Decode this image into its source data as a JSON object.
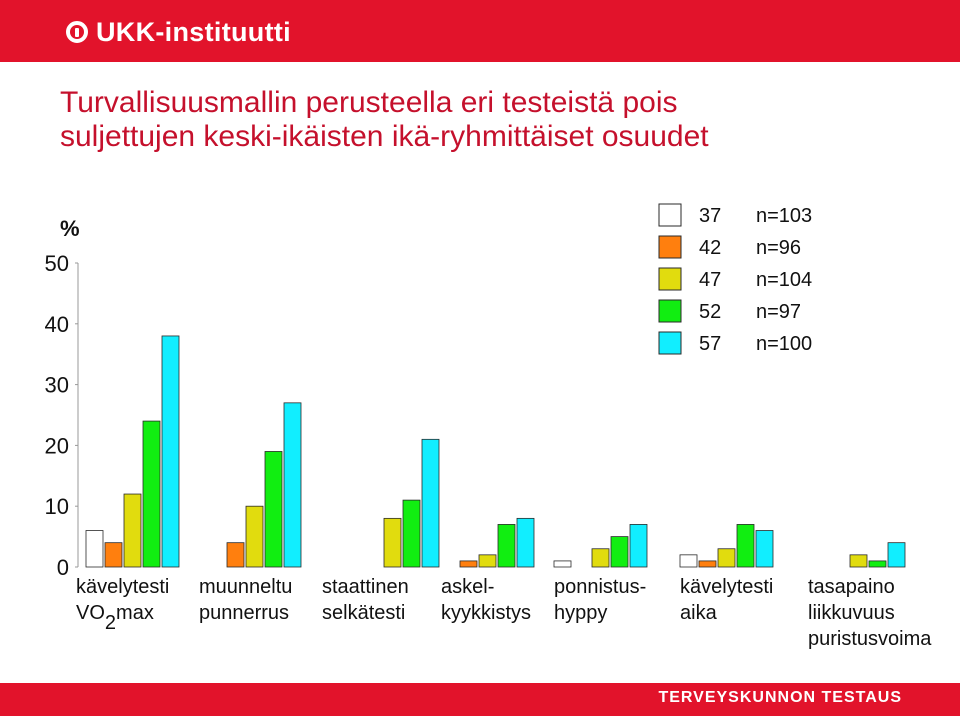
{
  "header": {
    "logo_text": "UKK-instituutti"
  },
  "slide": {
    "title_line1": "Turvallisuusmallin perusteella eri  testeistä pois",
    "title_line2": "suljettujen keski-ikäisten ikä-ryhmittäiset osuudet"
  },
  "footer": {
    "label": "TERVEYSKUNNON TESTAUS"
  },
  "chart_data": {
    "type": "bar",
    "title": "",
    "ylabel": "%",
    "xlabel": "",
    "ylim": [
      0,
      50
    ],
    "yticks": [
      "0",
      "10",
      "20",
      "30",
      "40",
      "50"
    ],
    "legend_position": "top-right",
    "categories": [
      {
        "line1": "kävelytesti",
        "line2": "VO",
        "sub": "2",
        "line2_suffix": "max"
      },
      {
        "line1": "muunneltu",
        "line2": "punnerrus"
      },
      {
        "line1": "staattinen",
        "line2": "selkätesti"
      },
      {
        "line1": "askel-",
        "line2": "kyykkistys"
      },
      {
        "line1": "ponnistus-",
        "line2": "hyppy"
      },
      {
        "line1": "kävelytesti",
        "line2": "aika"
      },
      {
        "line1": "tasapaino",
        "line2": "liikkuvuus",
        "line3": "puristusvoima"
      }
    ],
    "series": [
      {
        "name": "37",
        "n": "n=103",
        "color": "#ffffff",
        "values": [
          6,
          0,
          0,
          0,
          1,
          2,
          0
        ]
      },
      {
        "name": "42",
        "n": "n=96",
        "color": "#ff7f0e",
        "values": [
          4,
          4,
          0,
          1,
          0,
          1,
          0
        ]
      },
      {
        "name": "47",
        "n": "n=104",
        "color": "#e1dc0e",
        "values": [
          12,
          10,
          8,
          2,
          3,
          3,
          2
        ]
      },
      {
        "name": "52",
        "n": "n=97",
        "color": "#11ee11",
        "values": [
          24,
          19,
          11,
          7,
          5,
          7,
          1
        ]
      },
      {
        "name": "57",
        "n": "n=100",
        "color": "#11eeff",
        "values": [
          38,
          27,
          21,
          8,
          7,
          6,
          4
        ]
      }
    ]
  }
}
